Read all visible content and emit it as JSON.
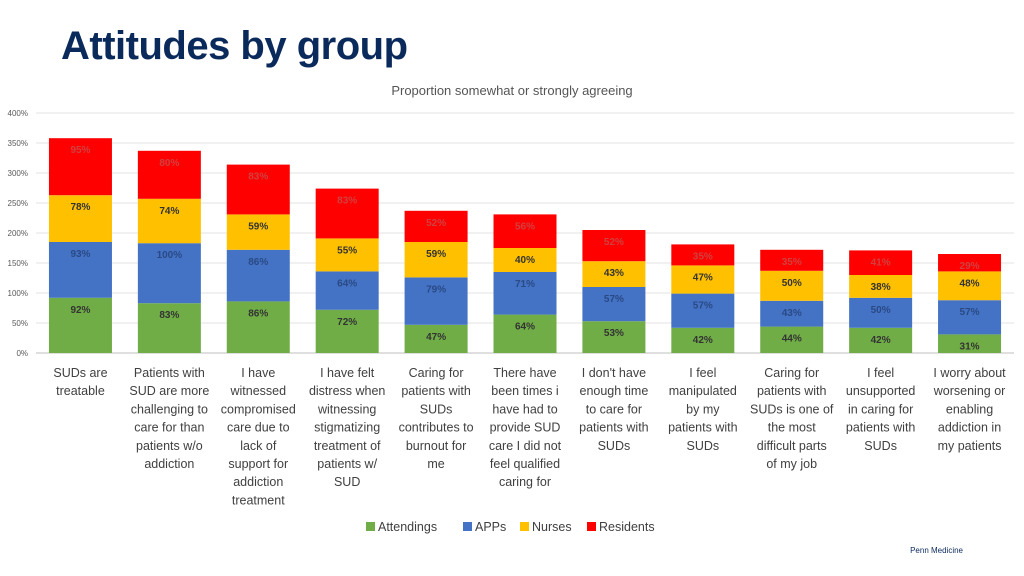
{
  "slide": {
    "title": "Attitudes by group",
    "footer": "Penn Medicine"
  },
  "chart_data": {
    "type": "bar",
    "stacked": true,
    "title": "Proportion somewhat or strongly agreeing",
    "ylim": [
      0,
      400
    ],
    "yticks": [
      0,
      50,
      100,
      150,
      200,
      250,
      300,
      350,
      400
    ],
    "ytick_suffix": "%",
    "grid": true,
    "legend_position": "bottom",
    "categories": [
      [
        "SUDs are",
        "treatable"
      ],
      [
        "Patients with",
        "SUD are more",
        "challenging to",
        "care for than",
        "patients w/o",
        "addiction"
      ],
      [
        "I have",
        "witnessed",
        "compromised",
        "care due to",
        "lack of",
        "support for",
        "addiction",
        "treatment"
      ],
      [
        "I have felt",
        "distress when",
        "witnessing",
        "stigmatizing",
        "treatment of",
        "patients w/",
        "SUD"
      ],
      [
        "Caring for",
        "patients with",
        "SUDs",
        "contributes to",
        "burnout for",
        "me"
      ],
      [
        "There have",
        "been times i",
        "have had to",
        "provide SUD",
        "care I did not",
        "feel qualified",
        "caring for"
      ],
      [
        "I don't have",
        "enough time",
        "to care for",
        "patients with",
        "SUDs"
      ],
      [
        "I feel",
        "manipulated",
        "by my",
        "patients with",
        "SUDs"
      ],
      [
        "Caring for",
        "patients with",
        "SUDs is one of",
        "the most",
        "difficult parts",
        "of my job"
      ],
      [
        "I feel",
        "unsupported",
        "in caring for",
        "patients with",
        "SUDs"
      ],
      [
        "I worry about",
        "worsening or",
        "enabling",
        "addiction in",
        "my patients"
      ]
    ],
    "series": [
      {
        "name": "Attendings",
        "color": "#70ad47",
        "values": [
          92,
          83,
          86,
          72,
          47,
          64,
          53,
          42,
          44,
          42,
          31
        ]
      },
      {
        "name": "APPs",
        "color": "#4472c4",
        "values": [
          93,
          100,
          86,
          64,
          79,
          71,
          57,
          57,
          43,
          50,
          57
        ]
      },
      {
        "name": "Nurses",
        "color": "#ffc000",
        "values": [
          78,
          74,
          59,
          55,
          59,
          40,
          43,
          47,
          50,
          38,
          48
        ]
      },
      {
        "name": "Residents",
        "color": "#ff0000",
        "values": [
          95,
          80,
          83,
          83,
          52,
          56,
          52,
          35,
          35,
          41,
          29
        ]
      }
    ],
    "label_colors": {
      "Attendings": "#333333",
      "APPs": "#2a4a85",
      "Nurses": "#333333",
      "Residents": "#d04040"
    }
  }
}
